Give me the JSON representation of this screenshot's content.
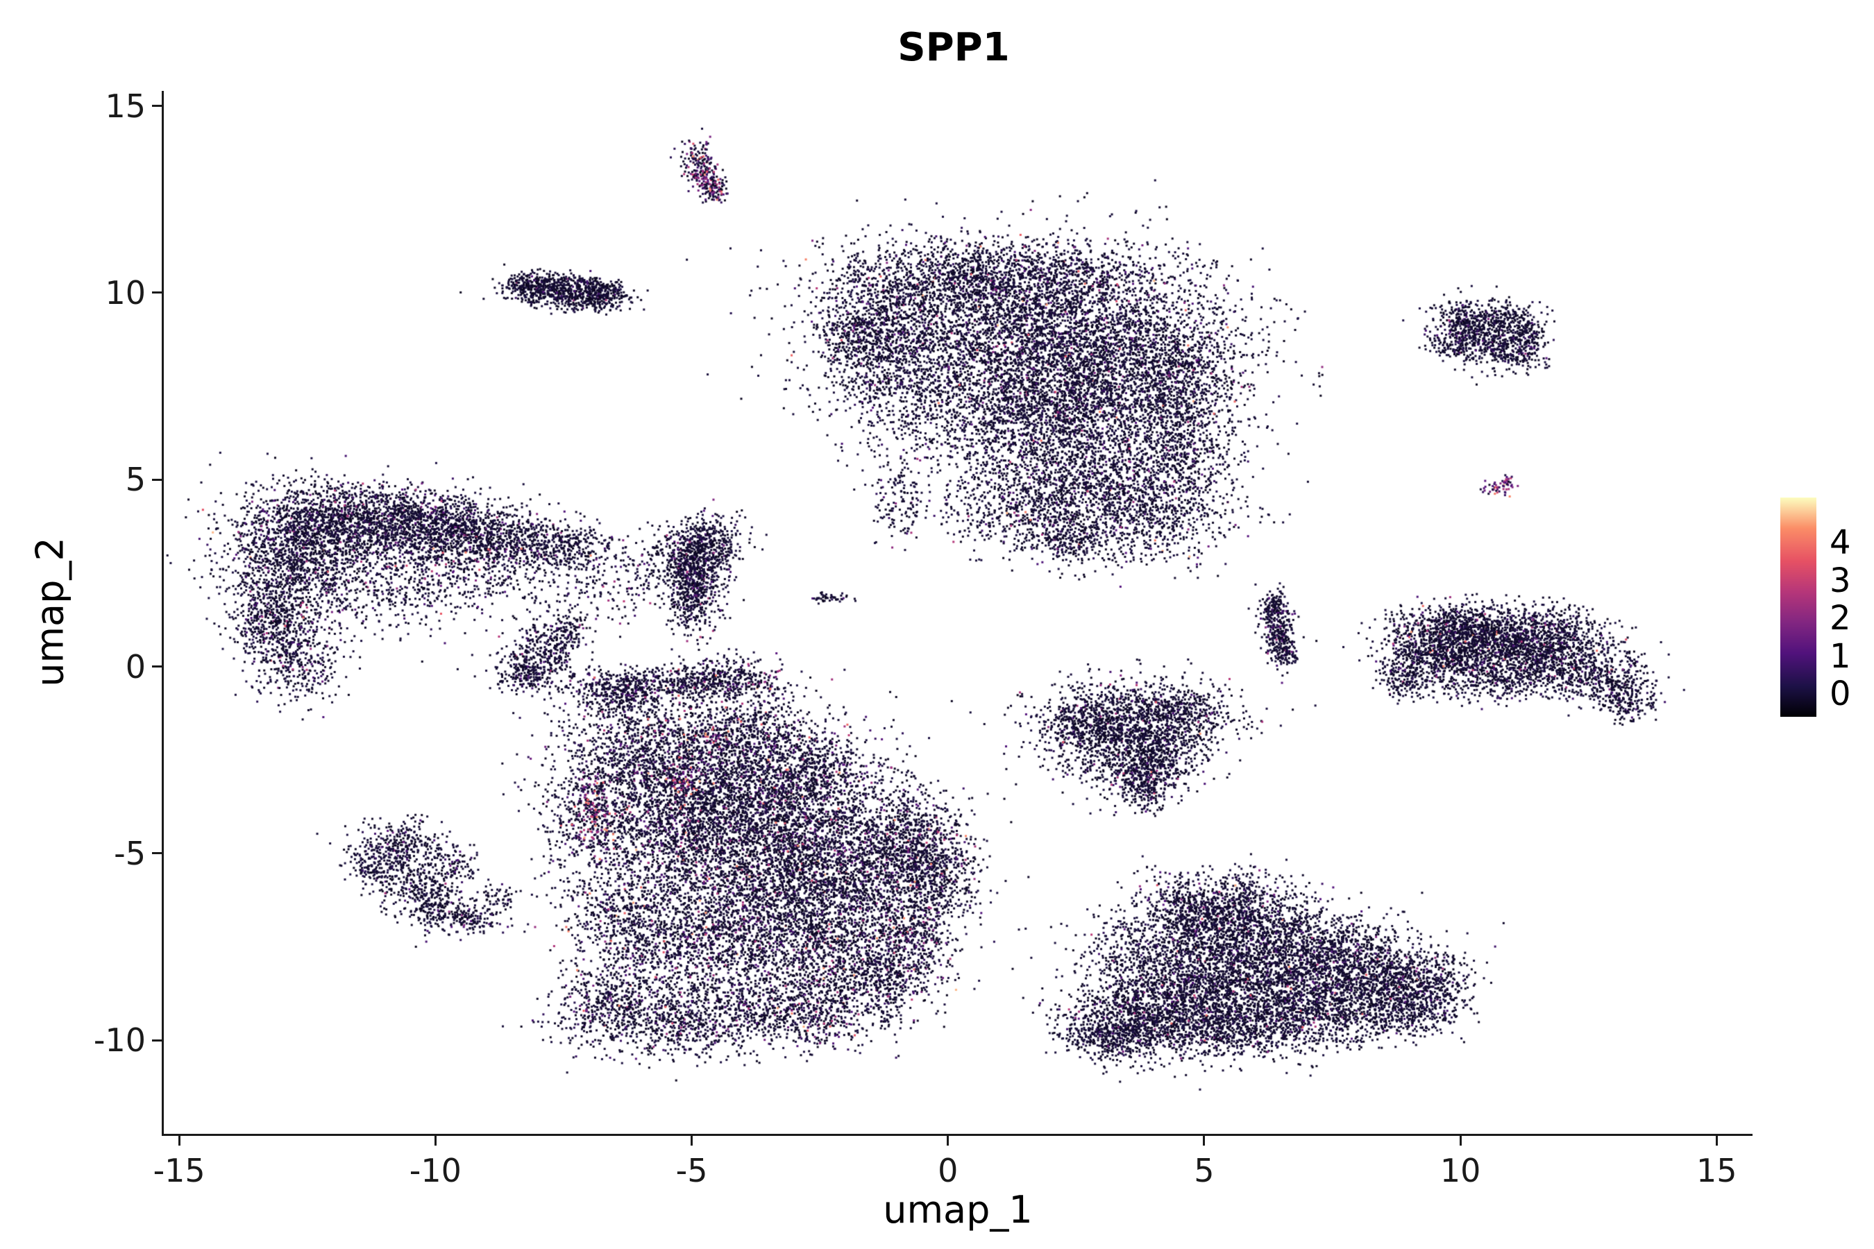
{
  "chart_data": {
    "type": "scatter",
    "title": "SPP1",
    "xlabel": "umap_1",
    "ylabel": "umap_2",
    "x_range": [
      -15.3,
      15.7
    ],
    "y_range": [
      -12.5,
      15.4
    ],
    "x_ticks": [
      "-15",
      "-10",
      "-5",
      "0",
      "5",
      "10",
      "15"
    ],
    "x_tick_values": [
      -15,
      -10,
      -5,
      0,
      5,
      10,
      15
    ],
    "y_ticks": [
      "-10",
      "-5",
      "0",
      "5",
      "10",
      "15"
    ],
    "y_tick_values": [
      -10,
      -5,
      0,
      5,
      10,
      15
    ],
    "grid": false,
    "background_color": "#ffffff",
    "point_size": 3,
    "legend": {
      "position": "right",
      "ticks": [
        "4",
        "3",
        "2",
        "1",
        "0"
      ],
      "tick_values": [
        4,
        3,
        2,
        1,
        0
      ],
      "vmin": -0.6,
      "vmax": 5.2,
      "colormap": "magma",
      "stops": [
        [
          0.0,
          "#000004"
        ],
        [
          0.14,
          "#1d1147"
        ],
        [
          0.29,
          "#51127c"
        ],
        [
          0.43,
          "#822681"
        ],
        [
          0.57,
          "#b63679"
        ],
        [
          0.71,
          "#e65164"
        ],
        [
          0.86,
          "#fb8d67"
        ],
        [
          1.0,
          "#fcfdbf"
        ]
      ]
    },
    "value_bins": [
      [
        0,
        0.4
      ],
      [
        0.5,
        1.3
      ],
      [
        1.5,
        2.6
      ],
      [
        2.7,
        4.2
      ]
    ],
    "value_to_color_range": [
      0.05,
      4.6
    ],
    "clusters": [
      {
        "name": "streak-top",
        "expr": [
          0.5,
          0.25,
          0.17,
          0.08
        ],
        "blobs": [
          [
            -4.9,
            13.5,
            0.18,
            0.28,
            130
          ],
          [
            -4.7,
            13.0,
            0.15,
            0.25,
            110
          ],
          [
            -4.5,
            12.7,
            0.12,
            0.15,
            60
          ]
        ]
      },
      {
        "name": "blob-upper-left",
        "expr": [
          0.93,
          0.06,
          0.01,
          0
        ],
        "blobs": [
          [
            -7.6,
            10.1,
            0.5,
            0.22,
            500
          ],
          [
            -6.8,
            10.0,
            0.35,
            0.18,
            250
          ],
          [
            -8.2,
            10.2,
            0.25,
            0.15,
            150
          ],
          [
            -7.0,
            9.7,
            0.3,
            0.12,
            80
          ]
        ]
      },
      {
        "name": "large-top-center",
        "expr": [
          0.9,
          0.08,
          0.015,
          0.005
        ],
        "blobs": [
          [
            0.8,
            10.4,
            1.5,
            0.5,
            1400
          ],
          [
            1.3,
            8.8,
            1.8,
            1.2,
            3800
          ],
          [
            -1.2,
            8.6,
            0.6,
            1.1,
            900
          ],
          [
            3.4,
            8.2,
            1.2,
            1.2,
            1800
          ],
          [
            4.6,
            7.6,
            0.5,
            0.8,
            500
          ],
          [
            1.8,
            6.8,
            1.5,
            0.7,
            1400
          ],
          [
            2.6,
            5.2,
            1.3,
            0.8,
            1300
          ],
          [
            3.8,
            4.1,
            0.9,
            0.7,
            800
          ],
          [
            1.5,
            4.2,
            0.8,
            0.6,
            500
          ],
          [
            4.6,
            5.8,
            0.5,
            0.6,
            300
          ],
          [
            2.3,
            3.4,
            0.4,
            0.3,
            200
          ],
          [
            -0.9,
            4.6,
            0.25,
            0.7,
            150
          ],
          [
            -1.9,
            9.0,
            0.3,
            0.4,
            150
          ]
        ]
      },
      {
        "name": "small-right-top",
        "expr": [
          0.92,
          0.07,
          0.01,
          0
        ],
        "blobs": [
          [
            10.4,
            8.9,
            0.45,
            0.4,
            450
          ],
          [
            11.0,
            8.5,
            0.35,
            0.3,
            250
          ],
          [
            10.0,
            9.3,
            0.25,
            0.25,
            150
          ],
          [
            10.8,
            9.4,
            0.3,
            0.2,
            120
          ],
          [
            11.3,
            8.9,
            0.2,
            0.25,
            100
          ],
          [
            9.8,
            8.6,
            0.2,
            0.2,
            70
          ]
        ]
      },
      {
        "name": "pink-streak-right",
        "expr": [
          0.25,
          0.3,
          0.3,
          0.15
        ],
        "blobs": [
          [
            10.75,
            4.75,
            0.14,
            0.1,
            35
          ],
          [
            10.95,
            4.92,
            0.1,
            0.08,
            25
          ]
        ]
      },
      {
        "name": "large-left",
        "expr": [
          0.88,
          0.09,
          0.025,
          0.005
        ],
        "blobs": [
          [
            -12.8,
            2.9,
            0.7,
            1.0,
            1300
          ],
          [
            -11.8,
            3.8,
            0.9,
            0.55,
            1100
          ],
          [
            -10.5,
            3.9,
            0.8,
            0.45,
            800
          ],
          [
            -9.3,
            3.6,
            0.7,
            0.4,
            550
          ],
          [
            -8.3,
            3.3,
            0.6,
            0.35,
            350
          ],
          [
            -7.3,
            3.2,
            0.5,
            0.3,
            220
          ],
          [
            -13.2,
            1.2,
            0.4,
            0.7,
            450
          ],
          [
            -12.6,
            0.1,
            0.4,
            0.5,
            300
          ],
          [
            -11.0,
            2.3,
            1.1,
            0.8,
            500
          ],
          [
            -9.8,
            2.6,
            0.8,
            0.5,
            250
          ],
          [
            -8.0,
            2.4,
            0.8,
            0.5,
            150
          ],
          [
            -6.8,
            2.0,
            0.5,
            0.5,
            100
          ]
        ]
      },
      {
        "name": "small-mid-left",
        "expr": [
          0.92,
          0.07,
          0.01,
          0
        ],
        "blobs": [
          [
            -7.9,
            0.3,
            0.35,
            0.4,
            300
          ],
          [
            -8.3,
            -0.2,
            0.3,
            0.25,
            150
          ],
          [
            -7.5,
            0.9,
            0.25,
            0.3,
            120
          ]
        ]
      },
      {
        "name": "dense-small-center-left",
        "expr": [
          0.9,
          0.08,
          0.02,
          0
        ],
        "blobs": [
          [
            -4.9,
            2.8,
            0.35,
            0.5,
            600
          ],
          [
            -5.0,
            1.8,
            0.25,
            0.5,
            350
          ],
          [
            -4.7,
            3.4,
            0.4,
            0.3,
            250
          ],
          [
            -5.8,
            2.6,
            0.4,
            0.5,
            120
          ]
        ]
      },
      {
        "name": "tiny-dash",
        "expr": [
          0.9,
          0.1,
          0,
          0
        ],
        "blobs": [
          [
            -2.3,
            1.85,
            0.22,
            0.07,
            45
          ]
        ]
      },
      {
        "name": "sliver-center-right",
        "expr": [
          0.9,
          0.08,
          0.02,
          0
        ],
        "blobs": [
          [
            6.45,
            1.0,
            0.15,
            0.45,
            280
          ],
          [
            6.6,
            0.35,
            0.12,
            0.2,
            80
          ],
          [
            6.3,
            1.6,
            0.12,
            0.2,
            70
          ]
        ]
      },
      {
        "name": "elongated-right",
        "expr": [
          0.91,
          0.07,
          0.015,
          0.005
        ],
        "blobs": [
          [
            10.2,
            0.6,
            0.8,
            0.5,
            900
          ],
          [
            11.2,
            0.5,
            0.8,
            0.45,
            800
          ],
          [
            9.4,
            0.4,
            0.5,
            0.5,
            500
          ],
          [
            12.2,
            0.1,
            0.6,
            0.4,
            450
          ],
          [
            13.0,
            -0.5,
            0.4,
            0.35,
            250
          ],
          [
            13.3,
            -1.0,
            0.25,
            0.3,
            120
          ],
          [
            10.0,
            1.2,
            0.5,
            0.25,
            250
          ],
          [
            11.8,
            1.0,
            0.5,
            0.3,
            250
          ],
          [
            9.0,
            -0.3,
            0.3,
            0.3,
            150
          ],
          [
            10.8,
            -0.4,
            0.8,
            0.3,
            300
          ]
        ]
      },
      {
        "name": "triangle-center",
        "expr": [
          0.92,
          0.06,
          0.015,
          0.005
        ],
        "blobs": [
          [
            3.6,
            -1.3,
            1.0,
            0.5,
            800
          ],
          [
            3.3,
            -2.1,
            0.7,
            0.5,
            600
          ],
          [
            4.2,
            -2.2,
            0.5,
            0.5,
            400
          ],
          [
            3.8,
            -2.9,
            0.4,
            0.4,
            300
          ],
          [
            4.6,
            -1.1,
            0.4,
            0.3,
            200
          ],
          [
            2.6,
            -1.5,
            0.4,
            0.4,
            250
          ],
          [
            3.9,
            -3.4,
            0.2,
            0.25,
            100
          ]
        ]
      },
      {
        "name": "large-bottom-left",
        "expr": [
          0.86,
          0.1,
          0.03,
          0.01
        ],
        "blobs": [
          [
            -5.4,
            -0.45,
            1.1,
            0.22,
            550
          ],
          [
            -6.4,
            -0.8,
            0.4,
            0.3,
            250
          ],
          [
            -4.3,
            -0.3,
            0.5,
            0.3,
            250
          ],
          [
            -5.8,
            -2.3,
            0.9,
            0.8,
            1100
          ],
          [
            -4.4,
            -3.2,
            1.1,
            1.0,
            1700
          ],
          [
            -3.0,
            -4.3,
            1.2,
            1.0,
            1900
          ],
          [
            -5.3,
            -4.6,
            0.9,
            0.9,
            1100
          ],
          [
            -1.8,
            -5.6,
            1.0,
            0.9,
            1300
          ],
          [
            -3.5,
            -6.3,
            1.1,
            0.9,
            1300
          ],
          [
            -0.7,
            -4.7,
            0.5,
            0.7,
            600
          ],
          [
            -0.2,
            -5.6,
            0.35,
            0.5,
            300
          ],
          [
            -2.2,
            -7.6,
            1.0,
            0.8,
            1000
          ],
          [
            -4.8,
            -7.6,
            1.0,
            0.8,
            1000
          ],
          [
            -6.3,
            -6.7,
            0.6,
            0.7,
            500
          ],
          [
            -7.0,
            -4.0,
            0.5,
            0.8,
            450
          ],
          [
            -2.8,
            -9.2,
            0.9,
            0.5,
            700
          ],
          [
            -5.2,
            -9.5,
            1.1,
            0.45,
            800
          ],
          [
            -6.6,
            -8.9,
            0.5,
            0.5,
            350
          ],
          [
            -1.2,
            -8.3,
            0.5,
            0.5,
            350
          ],
          [
            -0.6,
            -7.1,
            0.4,
            0.5,
            300
          ],
          [
            -3.9,
            -1.6,
            0.6,
            0.4,
            350
          ],
          [
            -2.7,
            -2.6,
            0.7,
            0.5,
            450
          ]
        ]
      },
      {
        "name": "hotspot-red-1",
        "expr": [
          0.05,
          0.15,
          0.35,
          0.45
        ],
        "blobs": [
          [
            -6.85,
            -3.8,
            0.18,
            0.45,
            70
          ]
        ]
      },
      {
        "name": "hotspot-pink-2",
        "expr": [
          0.1,
          0.2,
          0.4,
          0.3
        ],
        "blobs": [
          [
            -5.15,
            -3.1,
            0.15,
            0.3,
            45
          ]
        ]
      },
      {
        "name": "hotspot-pink-3",
        "expr": [
          0.15,
          0.25,
          0.4,
          0.2
        ],
        "blobs": [
          [
            -4.5,
            -1.9,
            0.12,
            0.2,
            25
          ]
        ]
      },
      {
        "name": "v-shape-left",
        "expr": [
          0.92,
          0.07,
          0.01,
          0
        ],
        "blobs": [
          [
            -10.7,
            -4.8,
            0.45,
            0.35,
            300
          ],
          [
            -11.1,
            -5.4,
            0.3,
            0.3,
            180
          ],
          [
            -10.3,
            -5.9,
            0.35,
            0.35,
            220
          ],
          [
            -9.9,
            -6.5,
            0.35,
            0.3,
            180
          ],
          [
            -9.6,
            -5.3,
            0.25,
            0.25,
            100
          ],
          [
            -9.3,
            -6.8,
            0.3,
            0.2,
            120
          ],
          [
            -8.8,
            -6.2,
            0.2,
            0.2,
            60
          ]
        ]
      },
      {
        "name": "large-bottom-right",
        "expr": [
          0.92,
          0.065,
          0.012,
          0.003
        ],
        "blobs": [
          [
            5.7,
            -6.4,
            0.5,
            0.5,
            450
          ],
          [
            6.3,
            -7.2,
            0.8,
            0.6,
            700
          ],
          [
            5.0,
            -7.4,
            0.7,
            0.6,
            600
          ],
          [
            7.4,
            -7.8,
            0.9,
            0.6,
            800
          ],
          [
            8.5,
            -8.2,
            0.7,
            0.5,
            600
          ],
          [
            9.3,
            -8.6,
            0.5,
            0.4,
            350
          ],
          [
            6.2,
            -8.6,
            1.2,
            0.7,
            1300
          ],
          [
            4.5,
            -8.7,
            0.9,
            0.6,
            900
          ],
          [
            3.6,
            -9.5,
            0.7,
            0.5,
            700
          ],
          [
            5.4,
            -9.7,
            1.0,
            0.4,
            800
          ],
          [
            7.5,
            -9.2,
            0.9,
            0.45,
            700
          ],
          [
            3.1,
            -9.9,
            0.4,
            0.3,
            250
          ],
          [
            8.9,
            -9.3,
            0.5,
            0.3,
            250
          ],
          [
            4.8,
            -6.7,
            0.4,
            0.4,
            250
          ],
          [
            4.3,
            -6.1,
            0.4,
            0.4,
            150
          ],
          [
            3.6,
            -7.6,
            0.5,
            0.6,
            300
          ]
        ]
      }
    ]
  }
}
